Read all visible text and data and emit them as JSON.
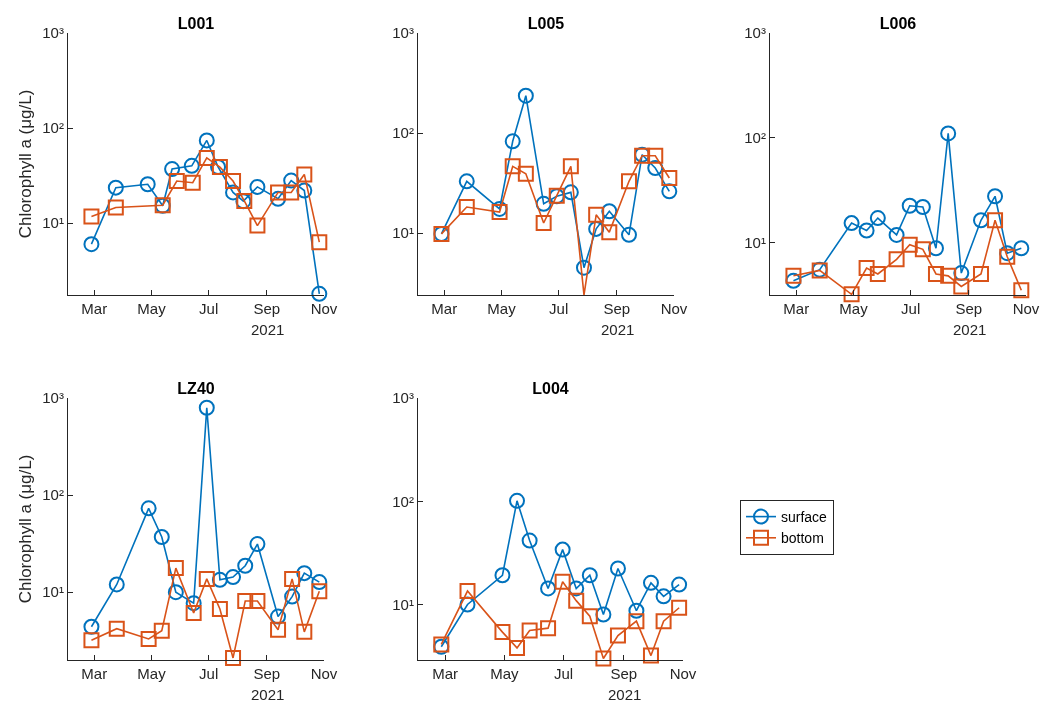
{
  "chart_data": [
    {
      "type": "line",
      "title": "L001",
      "ylabel": "Chlorophyll a (μg/L)",
      "xlabel": "2021",
      "log": true,
      "xlim": [
        "2021-02-01",
        "2021-11-01"
      ],
      "ylim": [
        1.75,
        1000
      ],
      "xticks": [
        {
          "value": "2021-03-01",
          "label": "Mar"
        },
        {
          "value": "2021-05-01",
          "label": "May"
        },
        {
          "value": "2021-07-01",
          "label": "Jul"
        },
        {
          "value": "2021-09-01",
          "label": "Sep"
        },
        {
          "value": "2021-11-01",
          "label": "Nov"
        }
      ],
      "yticks": [
        {
          "value": 10,
          "label": "10¹"
        },
        {
          "value": 100,
          "label": "10²"
        },
        {
          "value": 1000,
          "label": "10³"
        }
      ],
      "series": [
        {
          "color": "#0072bd",
          "marker": "circle",
          "x": [
            "2021-02-26",
            "2021-03-24",
            "2021-04-27",
            "2021-05-13",
            "2021-05-23",
            "2021-06-13",
            "2021-06-29",
            "2021-07-11",
            "2021-07-27",
            "2021-08-07",
            "2021-08-22",
            "2021-09-13",
            "2021-09-27",
            "2021-10-11",
            "2021-10-27"
          ],
          "values": [
            6.0,
            23.6,
            25.6,
            15.2,
            37,
            40,
            74,
            39,
            21,
            17,
            24,
            18,
            28,
            22,
            1.8
          ]
        },
        {
          "color": "#d95319",
          "marker": "square",
          "x": [
            "2021-02-26",
            "2021-03-24",
            "2021-05-13",
            "2021-05-28",
            "2021-06-14",
            "2021-06-29",
            "2021-07-13",
            "2021-07-27",
            "2021-08-08",
            "2021-08-22",
            "2021-09-13",
            "2021-09-27",
            "2021-10-11",
            "2021-10-27"
          ],
          "values": [
            11.7,
            14.6,
            15.4,
            27.7,
            26.6,
            48.5,
            38.8,
            27.7,
            17.1,
            9.4,
            21,
            21,
            32.5,
            6.3
          ]
        }
      ]
    },
    {
      "type": "line",
      "title": "L005",
      "xlabel": "2021",
      "log": true,
      "xlim": [
        "2021-02-01",
        "2021-11-01"
      ],
      "ylim": [
        2.4,
        1000
      ],
      "xticks": [
        {
          "value": "2021-03-01",
          "label": "Mar"
        },
        {
          "value": "2021-05-01",
          "label": "May"
        },
        {
          "value": "2021-07-01",
          "label": "Jul"
        },
        {
          "value": "2021-09-01",
          "label": "Sep"
        },
        {
          "value": "2021-11-01",
          "label": "Nov"
        }
      ],
      "yticks": [
        {
          "value": 10,
          "label": "10¹"
        },
        {
          "value": 100,
          "label": "10²"
        },
        {
          "value": 1000,
          "label": "10³"
        }
      ],
      "series": [
        {
          "color": "#0072bd",
          "marker": "circle",
          "x": [
            "2021-02-26",
            "2021-03-25",
            "2021-04-29",
            "2021-05-13",
            "2021-05-27",
            "2021-06-15",
            "2021-06-29",
            "2021-07-14",
            "2021-07-28",
            "2021-08-10",
            "2021-08-24",
            "2021-09-14",
            "2021-09-28",
            "2021-10-12",
            "2021-10-27"
          ],
          "values": [
            9.8,
            32.9,
            17.4,
            82.6,
            236,
            19.6,
            23.3,
            25.5,
            4.5,
            11,
            16.5,
            9.6,
            60.7,
            44.7,
            26.1
          ]
        },
        {
          "color": "#d95319",
          "marker": "square",
          "x": [
            "2021-02-26",
            "2021-03-25",
            "2021-04-29",
            "2021-05-13",
            "2021-05-27",
            "2021-06-15",
            "2021-06-29",
            "2021-07-14",
            "2021-07-28",
            "2021-08-10",
            "2021-08-24",
            "2021-09-14",
            "2021-09-28",
            "2021-10-12",
            "2021-10-27"
          ],
          "values": [
            9.8,
            18.2,
            16.2,
            46.4,
            39.2,
            12.6,
            23.6,
            46.4,
            2.4,
            15.2,
            10.2,
            32.9,
            59.3,
            59.3,
            35.5
          ]
        }
      ]
    },
    {
      "type": "line",
      "title": "L006",
      "xlabel": "2021",
      "log": true,
      "xlim": [
        "2021-02-01",
        "2021-11-01"
      ],
      "ylim": [
        3.15,
        1000
      ],
      "xticks": [
        {
          "value": "2021-03-01",
          "label": "Mar"
        },
        {
          "value": "2021-05-01",
          "label": "May"
        },
        {
          "value": "2021-07-01",
          "label": "Jul"
        },
        {
          "value": "2021-09-01",
          "label": "Sep"
        },
        {
          "value": "2021-11-01",
          "label": "Nov"
        }
      ],
      "yticks": [
        {
          "value": 10,
          "label": "10¹"
        },
        {
          "value": 100,
          "label": "10²"
        },
        {
          "value": 1000,
          "label": "10³"
        }
      ],
      "series": [
        {
          "color": "#0072bd",
          "marker": "circle",
          "x": [
            "2021-02-26",
            "2021-03-26",
            "2021-04-29",
            "2021-05-15",
            "2021-05-27",
            "2021-06-16",
            "2021-06-30",
            "2021-07-14",
            "2021-07-28",
            "2021-08-10",
            "2021-08-24",
            "2021-09-14",
            "2021-09-29",
            "2021-10-12",
            "2021-10-27"
          ],
          "values": [
            4.3,
            5.5,
            15.3,
            13.0,
            17.1,
            11.8,
            22.4,
            21.8,
            8.8,
            110,
            5.1,
            16.3,
            27.6,
            7.9,
            8.8
          ]
        },
        {
          "color": "#d95319",
          "marker": "square",
          "x": [
            "2021-02-26",
            "2021-03-26",
            "2021-04-29",
            "2021-05-15",
            "2021-05-27",
            "2021-06-16",
            "2021-06-30",
            "2021-07-14",
            "2021-07-28",
            "2021-08-10",
            "2021-08-24",
            "2021-09-14",
            "2021-09-29",
            "2021-10-12",
            "2021-10-27"
          ],
          "values": [
            4.8,
            5.4,
            3.2,
            5.7,
            5.0,
            6.9,
            9.5,
            8.6,
            5.0,
            4.8,
            3.8,
            5.0,
            16.3,
            7.3,
            3.5
          ]
        }
      ]
    },
    {
      "type": "line",
      "title": "LZ40",
      "ylabel": "Chlorophyll a (μg/L)",
      "xlabel": "2021",
      "log": true,
      "xlim": [
        "2021-02-01",
        "2021-11-01"
      ],
      "ylim": [
        2.0,
        1000
      ],
      "xticks": [
        {
          "value": "2021-03-01",
          "label": "Mar"
        },
        {
          "value": "2021-05-01",
          "label": "May"
        },
        {
          "value": "2021-07-01",
          "label": "Jul"
        },
        {
          "value": "2021-09-01",
          "label": "Sep"
        },
        {
          "value": "2021-11-01",
          "label": "Nov"
        }
      ],
      "yticks": [
        {
          "value": 10,
          "label": "10¹"
        },
        {
          "value": 100,
          "label": "10²"
        },
        {
          "value": 1000,
          "label": "10³"
        }
      ],
      "series": [
        {
          "color": "#0072bd",
          "marker": "circle",
          "x": [
            "2021-02-26",
            "2021-03-25",
            "2021-04-28",
            "2021-05-12",
            "2021-05-27",
            "2021-06-15",
            "2021-06-29",
            "2021-07-13",
            "2021-07-27",
            "2021-08-09",
            "2021-08-22",
            "2021-09-13",
            "2021-09-28",
            "2021-10-11",
            "2021-10-27"
          ],
          "values": [
            4.4,
            12,
            73,
            37,
            10,
            7.7,
            794,
            13.4,
            14.3,
            18.7,
            31.3,
            5.6,
            9.0,
            15.7,
            12.7
          ]
        },
        {
          "color": "#d95319",
          "marker": "square",
          "x": [
            "2021-02-26",
            "2021-03-25",
            "2021-04-28",
            "2021-05-12",
            "2021-05-27",
            "2021-06-15",
            "2021-06-29",
            "2021-07-13",
            "2021-07-27",
            "2021-08-09",
            "2021-08-22",
            "2021-09-13",
            "2021-09-28",
            "2021-10-11",
            "2021-10-27"
          ],
          "values": [
            3.2,
            4.2,
            3.3,
            4.0,
            17.7,
            6.1,
            13.7,
            6.7,
            2.1,
            8.1,
            8.1,
            4.1,
            13.7,
            3.9,
            10.2
          ]
        }
      ]
    },
    {
      "type": "line",
      "title": "L004",
      "xlabel": "2021",
      "log": true,
      "legend": "right",
      "xlim": [
        "2021-02-01",
        "2021-11-01"
      ],
      "ylim": [
        2.9,
        1000
      ],
      "xticks": [
        {
          "value": "2021-03-01",
          "label": "Mar"
        },
        {
          "value": "2021-05-01",
          "label": "May"
        },
        {
          "value": "2021-07-01",
          "label": "Jul"
        },
        {
          "value": "2021-09-01",
          "label": "Sep"
        },
        {
          "value": "2021-11-01",
          "label": "Nov"
        }
      ],
      "yticks": [
        {
          "value": 10,
          "label": "10¹"
        },
        {
          "value": 100,
          "label": "10²"
        },
        {
          "value": 1000,
          "label": "10³"
        }
      ],
      "series": [
        {
          "name": "surface",
          "color": "#0072bd",
          "marker": "circle",
          "x": [
            "2021-02-25",
            "2021-03-24",
            "2021-04-29",
            "2021-05-14",
            "2021-05-27",
            "2021-06-15",
            "2021-06-30",
            "2021-07-14",
            "2021-07-28",
            "2021-08-11",
            "2021-08-26",
            "2021-09-14",
            "2021-09-29",
            "2021-10-12",
            "2021-10-28"
          ],
          "values": [
            3.9,
            10,
            19.2,
            101,
            41.6,
            14.3,
            34,
            14.3,
            19.2,
            8.0,
            22.3,
            8.7,
            16.2,
            12.0,
            15.6
          ]
        },
        {
          "name": "bottom",
          "color": "#d95319",
          "marker": "square",
          "x": [
            "2021-02-25",
            "2021-03-24",
            "2021-04-29",
            "2021-05-14",
            "2021-05-27",
            "2021-06-15",
            "2021-06-30",
            "2021-07-14",
            "2021-07-28",
            "2021-08-11",
            "2021-08-26",
            "2021-09-14",
            "2021-09-29",
            "2021-10-12",
            "2021-10-28"
          ],
          "values": [
            4.1,
            13.5,
            5.4,
            3.8,
            5.6,
            5.9,
            16.6,
            10.9,
            7.7,
            3.0,
            5.0,
            6.9,
            3.2,
            6.9,
            9.3
          ]
        }
      ]
    }
  ]
}
